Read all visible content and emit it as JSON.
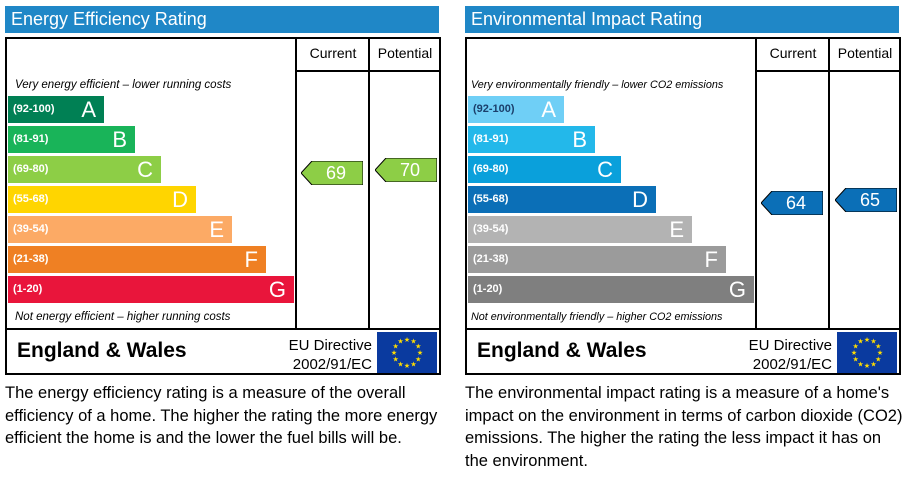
{
  "chart_data": [
    {
      "type": "bar",
      "title": "Energy Efficiency Rating",
      "column_headers": [
        "Current",
        "Potential"
      ],
      "caption_top": "Very energy efficient – lower running costs",
      "caption_bottom": "Not energy efficient – higher running costs",
      "bands": [
        {
          "range": "(92-100)",
          "letter": "A",
          "color": "#008054"
        },
        {
          "range": "(81-91)",
          "letter": "B",
          "color": "#19b459"
        },
        {
          "range": "(69-80)",
          "letter": "C",
          "color": "#8dce46"
        },
        {
          "range": "(55-68)",
          "letter": "D",
          "color": "#ffd500"
        },
        {
          "range": "(39-54)",
          "letter": "E",
          "color": "#fcaa65"
        },
        {
          "range": "(21-38)",
          "letter": "F",
          "color": "#ef8023"
        },
        {
          "range": "(1-20)",
          "letter": "G",
          "color": "#e9153b"
        }
      ],
      "current": {
        "value": 69,
        "band": "C",
        "color": "#8dce46"
      },
      "potential": {
        "value": 70,
        "band": "C",
        "color": "#8dce46"
      },
      "footer_region": "England & Wales",
      "footer_directive_line1": "EU Directive",
      "footer_directive_line2": "2002/91/EC",
      "description": "The energy efficiency rating is a measure of the overall efficiency of a home.  The higher the rating the more energy efficient the home is and the lower the fuel bills will be."
    },
    {
      "type": "bar",
      "title": "Environmental Impact Rating",
      "column_headers": [
        "Current",
        "Potential"
      ],
      "caption_top": "Very environmentally friendly – lower CO2 emissions",
      "caption_bottom": "Not environmentally friendly – higher CO2 emissions",
      "bands": [
        {
          "range": "(92-100)",
          "letter": "A",
          "color": "#6fcff6"
        },
        {
          "range": "(81-91)",
          "letter": "B",
          "color": "#23b8ea"
        },
        {
          "range": "(69-80)",
          "letter": "C",
          "color": "#0aa0db"
        },
        {
          "range": "(55-68)",
          "letter": "D",
          "color": "#0b6fb7"
        },
        {
          "range": "(39-54)",
          "letter": "E",
          "color": "#b3b3b3"
        },
        {
          "range": "(21-38)",
          "letter": "F",
          "color": "#9b9b9b"
        },
        {
          "range": "(1-20)",
          "letter": "G",
          "color": "#7f7f7f"
        }
      ],
      "current": {
        "value": 64,
        "band": "D",
        "color": "#0b6fb7"
      },
      "potential": {
        "value": 65,
        "band": "D",
        "color": "#0b6fb7"
      },
      "footer_region": "England & Wales",
      "footer_directive_line1": "EU Directive",
      "footer_directive_line2": "2002/91/EC",
      "description": "The environmental impact rating is a measure of a home's impact on the environment in terms of carbon dioxide (CO2) emissions.  The higher the rating the less impact it has on the environment."
    }
  ]
}
